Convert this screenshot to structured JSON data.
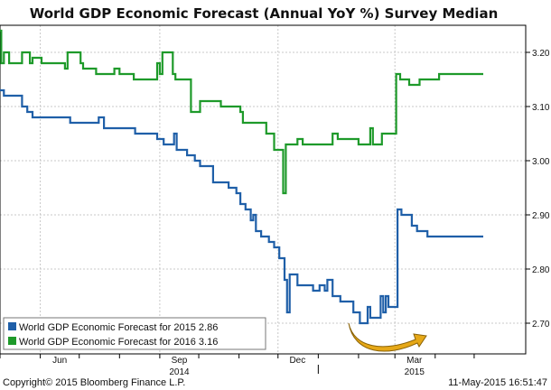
{
  "chart_data": {
    "type": "line",
    "title": "World GDP Economic Forecast (Annual YoY %) Survey Median",
    "ylim": [
      2.66,
      3.24
    ],
    "y_ticks": [
      "3.20",
      "3.10",
      "3.00",
      "2.90",
      "2.80",
      "2.70"
    ],
    "x_tick_labels": [
      "Jun",
      "Sep",
      "Dec",
      "Mar"
    ],
    "x_year_labels": [
      "2014",
      "2015"
    ],
    "grid": true,
    "legend_position": "bottom-left",
    "copyright": "Copyright© 2015 Bloomberg Finance L.P.",
    "timestamp": "11-May-2015 16:51:47",
    "series": [
      {
        "name": "World GDP Economic Forecast for 2015 2.86",
        "color": "#1f5fa8",
        "points": [
          [
            "2014-05-01",
            3.13
          ],
          [
            "2014-05-04",
            3.12
          ],
          [
            "2014-05-16",
            3.12
          ],
          [
            "2014-05-18",
            3.1
          ],
          [
            "2014-05-22",
            3.09
          ],
          [
            "2014-05-26",
            3.08
          ],
          [
            "2014-06-22",
            3.08
          ],
          [
            "2014-06-24",
            3.07
          ],
          [
            "2014-07-14",
            3.07
          ],
          [
            "2014-07-16",
            3.08
          ],
          [
            "2014-07-20",
            3.06
          ],
          [
            "2014-08-10",
            3.06
          ],
          [
            "2014-08-13",
            3.05
          ],
          [
            "2014-08-28",
            3.05
          ],
          [
            "2014-08-30",
            3.04
          ],
          [
            "2014-09-04",
            3.03
          ],
          [
            "2014-09-10",
            3.03
          ],
          [
            "2014-09-12",
            3.05
          ],
          [
            "2014-09-14",
            3.02
          ],
          [
            "2014-09-20",
            3.02
          ],
          [
            "2014-09-22",
            3.01
          ],
          [
            "2014-09-26",
            3.01
          ],
          [
            "2014-09-28",
            3.0
          ],
          [
            "2014-10-02",
            2.99
          ],
          [
            "2014-10-10",
            2.99
          ],
          [
            "2014-10-12",
            2.96
          ],
          [
            "2014-10-22",
            2.96
          ],
          [
            "2014-10-24",
            2.95
          ],
          [
            "2014-10-30",
            2.94
          ],
          [
            "2014-11-02",
            2.92
          ],
          [
            "2014-11-06",
            2.91
          ],
          [
            "2014-11-10",
            2.89
          ],
          [
            "2014-11-12",
            2.9
          ],
          [
            "2014-11-14",
            2.87
          ],
          [
            "2014-11-18",
            2.86
          ],
          [
            "2014-11-24",
            2.85
          ],
          [
            "2014-11-28",
            2.84
          ],
          [
            "2014-12-02",
            2.82
          ],
          [
            "2014-12-06",
            2.78
          ],
          [
            "2014-12-08",
            2.72
          ],
          [
            "2014-12-10",
            2.79
          ],
          [
            "2014-12-14",
            2.79
          ],
          [
            "2014-12-16",
            2.77
          ],
          [
            "2014-12-26",
            2.77
          ],
          [
            "2014-12-28",
            2.76
          ],
          [
            "2015-01-02",
            2.77
          ],
          [
            "2015-01-06",
            2.76
          ],
          [
            "2015-01-08",
            2.78
          ],
          [
            "2015-01-12",
            2.75
          ],
          [
            "2015-01-16",
            2.75
          ],
          [
            "2015-01-18",
            2.74
          ],
          [
            "2015-01-26",
            2.74
          ],
          [
            "2015-01-28",
            2.72
          ],
          [
            "2015-02-02",
            2.7
          ],
          [
            "2015-02-06",
            2.7
          ],
          [
            "2015-02-08",
            2.73
          ],
          [
            "2015-02-10",
            2.71
          ],
          [
            "2015-02-14",
            2.71
          ],
          [
            "2015-02-18",
            2.75
          ],
          [
            "2015-02-20",
            2.72
          ],
          [
            "2015-02-22",
            2.75
          ],
          [
            "2015-02-24",
            2.73
          ],
          [
            "2015-02-28",
            2.73
          ],
          [
            "2015-03-03",
            2.91
          ],
          [
            "2015-03-06",
            2.9
          ],
          [
            "2015-03-14",
            2.88
          ],
          [
            "2015-03-18",
            2.87
          ],
          [
            "2015-03-26",
            2.86
          ],
          [
            "2015-05-08",
            2.86
          ]
        ]
      },
      {
        "name": "World GDP Economic Forecast for 2016 3.16",
        "color": "#1e9a2a",
        "points": [
          [
            "2014-05-01",
            3.24
          ],
          [
            "2014-05-02",
            3.18
          ],
          [
            "2014-05-04",
            3.2
          ],
          [
            "2014-05-08",
            3.18
          ],
          [
            "2014-05-16",
            3.18
          ],
          [
            "2014-05-18",
            3.2
          ],
          [
            "2014-05-24",
            3.18
          ],
          [
            "2014-05-26",
            3.19
          ],
          [
            "2014-06-02",
            3.18
          ],
          [
            "2014-06-18",
            3.18
          ],
          [
            "2014-06-20",
            3.17
          ],
          [
            "2014-06-22",
            3.2
          ],
          [
            "2014-06-28",
            3.2
          ],
          [
            "2014-07-02",
            3.18
          ],
          [
            "2014-07-04",
            3.17
          ],
          [
            "2014-07-12",
            3.17
          ],
          [
            "2014-07-14",
            3.16
          ],
          [
            "2014-07-26",
            3.16
          ],
          [
            "2014-07-28",
            3.17
          ],
          [
            "2014-08-01",
            3.16
          ],
          [
            "2014-08-10",
            3.16
          ],
          [
            "2014-08-12",
            3.15
          ],
          [
            "2014-08-28",
            3.15
          ],
          [
            "2014-08-30",
            3.18
          ],
          [
            "2014-09-01",
            3.16
          ],
          [
            "2014-09-03",
            3.2
          ],
          [
            "2014-09-08",
            3.2
          ],
          [
            "2014-09-11",
            3.16
          ],
          [
            "2014-09-13",
            3.15
          ],
          [
            "2014-09-22",
            3.15
          ],
          [
            "2014-09-25",
            3.09
          ],
          [
            "2014-09-30",
            3.09
          ],
          [
            "2014-10-02",
            3.11
          ],
          [
            "2014-10-16",
            3.11
          ],
          [
            "2014-10-18",
            3.1
          ],
          [
            "2014-10-30",
            3.1
          ],
          [
            "2014-11-02",
            3.09
          ],
          [
            "2014-11-04",
            3.07
          ],
          [
            "2014-11-20",
            3.07
          ],
          [
            "2014-11-22",
            3.05
          ],
          [
            "2014-11-25",
            3.05
          ],
          [
            "2014-11-28",
            3.02
          ],
          [
            "2014-12-02",
            3.02
          ],
          [
            "2014-12-05",
            2.94
          ],
          [
            "2014-12-07",
            3.03
          ],
          [
            "2014-12-14",
            3.03
          ],
          [
            "2014-12-16",
            3.04
          ],
          [
            "2014-12-20",
            3.03
          ],
          [
            "2015-01-10",
            3.03
          ],
          [
            "2015-01-12",
            3.05
          ],
          [
            "2015-01-16",
            3.04
          ],
          [
            "2015-01-30",
            3.04
          ],
          [
            "2015-02-01",
            3.03
          ],
          [
            "2015-02-08",
            3.03
          ],
          [
            "2015-02-10",
            3.06
          ],
          [
            "2015-02-12",
            3.03
          ],
          [
            "2015-02-17",
            3.03
          ],
          [
            "2015-02-19",
            3.05
          ],
          [
            "2015-02-28",
            3.05
          ],
          [
            "2015-03-02",
            3.16
          ],
          [
            "2015-03-05",
            3.15
          ],
          [
            "2015-03-10",
            3.15
          ],
          [
            "2015-03-12",
            3.14
          ],
          [
            "2015-03-18",
            3.14
          ],
          [
            "2015-03-20",
            3.15
          ],
          [
            "2015-04-02",
            3.15
          ],
          [
            "2015-04-04",
            3.16
          ],
          [
            "2015-05-08",
            3.16
          ]
        ]
      }
    ]
  }
}
